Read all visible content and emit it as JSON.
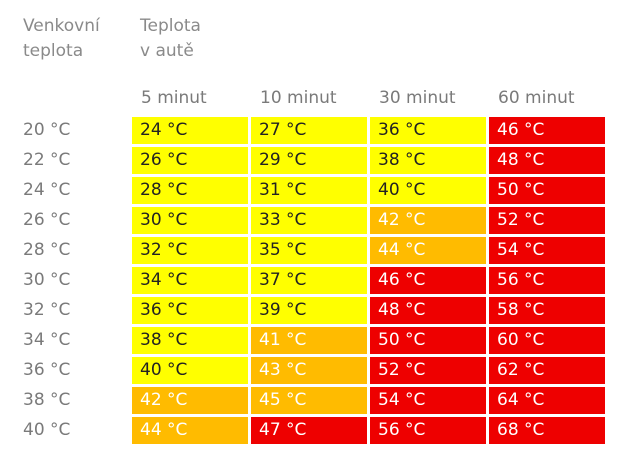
{
  "header": {
    "left_line1": "Venkovní",
    "left_line2": "teplota",
    "right_line1": "Teplota",
    "right_line2": "v autě"
  },
  "columns": [
    "5 minut",
    "10 minut",
    "30 minut",
    "60 minut"
  ],
  "rows": [
    {
      "outside": "20 °C",
      "cells": [
        "24 °C",
        "27 °C",
        "36 °C",
        "46 °C"
      ],
      "levels": [
        "yellow",
        "yellow",
        "yellow",
        "red"
      ]
    },
    {
      "outside": "22 °C",
      "cells": [
        "26 °C",
        "29 °C",
        "38 °C",
        "48 °C"
      ],
      "levels": [
        "yellow",
        "yellow",
        "yellow",
        "red"
      ]
    },
    {
      "outside": "24 °C",
      "cells": [
        "28 °C",
        "31 °C",
        "40 °C",
        "50 °C"
      ],
      "levels": [
        "yellow",
        "yellow",
        "yellow",
        "red"
      ]
    },
    {
      "outside": "26 °C",
      "cells": [
        "30 °C",
        "33 °C",
        "42 °C",
        "52 °C"
      ],
      "levels": [
        "yellow",
        "yellow",
        "orange",
        "red"
      ]
    },
    {
      "outside": "28 °C",
      "cells": [
        "32 °C",
        "35 °C",
        "44 °C",
        "54 °C"
      ],
      "levels": [
        "yellow",
        "yellow",
        "orange",
        "red"
      ]
    },
    {
      "outside": "30 °C",
      "cells": [
        "34 °C",
        "37 °C",
        "46 °C",
        "56 °C"
      ],
      "levels": [
        "yellow",
        "yellow",
        "red",
        "red"
      ]
    },
    {
      "outside": "32 °C",
      "cells": [
        "36 °C",
        "39 °C",
        "48 °C",
        "58 °C"
      ],
      "levels": [
        "yellow",
        "yellow",
        "red",
        "red"
      ]
    },
    {
      "outside": "34 °C",
      "cells": [
        "38 °C",
        "41 °C",
        "50 °C",
        "60 °C"
      ],
      "levels": [
        "yellow",
        "orange",
        "red",
        "red"
      ]
    },
    {
      "outside": "36 °C",
      "cells": [
        "40 °C",
        "43 °C",
        "52 °C",
        "62 °C"
      ],
      "levels": [
        "yellow",
        "orange",
        "red",
        "red"
      ]
    },
    {
      "outside": "38 °C",
      "cells": [
        "42 °C",
        "45 °C",
        "54 °C",
        "64 °C"
      ],
      "levels": [
        "orange",
        "orange",
        "red",
        "red"
      ]
    },
    {
      "outside": "40 °C",
      "cells": [
        "44 °C",
        "47 °C",
        "56 °C",
        "68 °C"
      ],
      "levels": [
        "orange",
        "red",
        "red",
        "red"
      ]
    }
  ],
  "colors": {
    "yellow": "#ffff00",
    "orange": "#ffbb00",
    "red": "#ee0000"
  }
}
